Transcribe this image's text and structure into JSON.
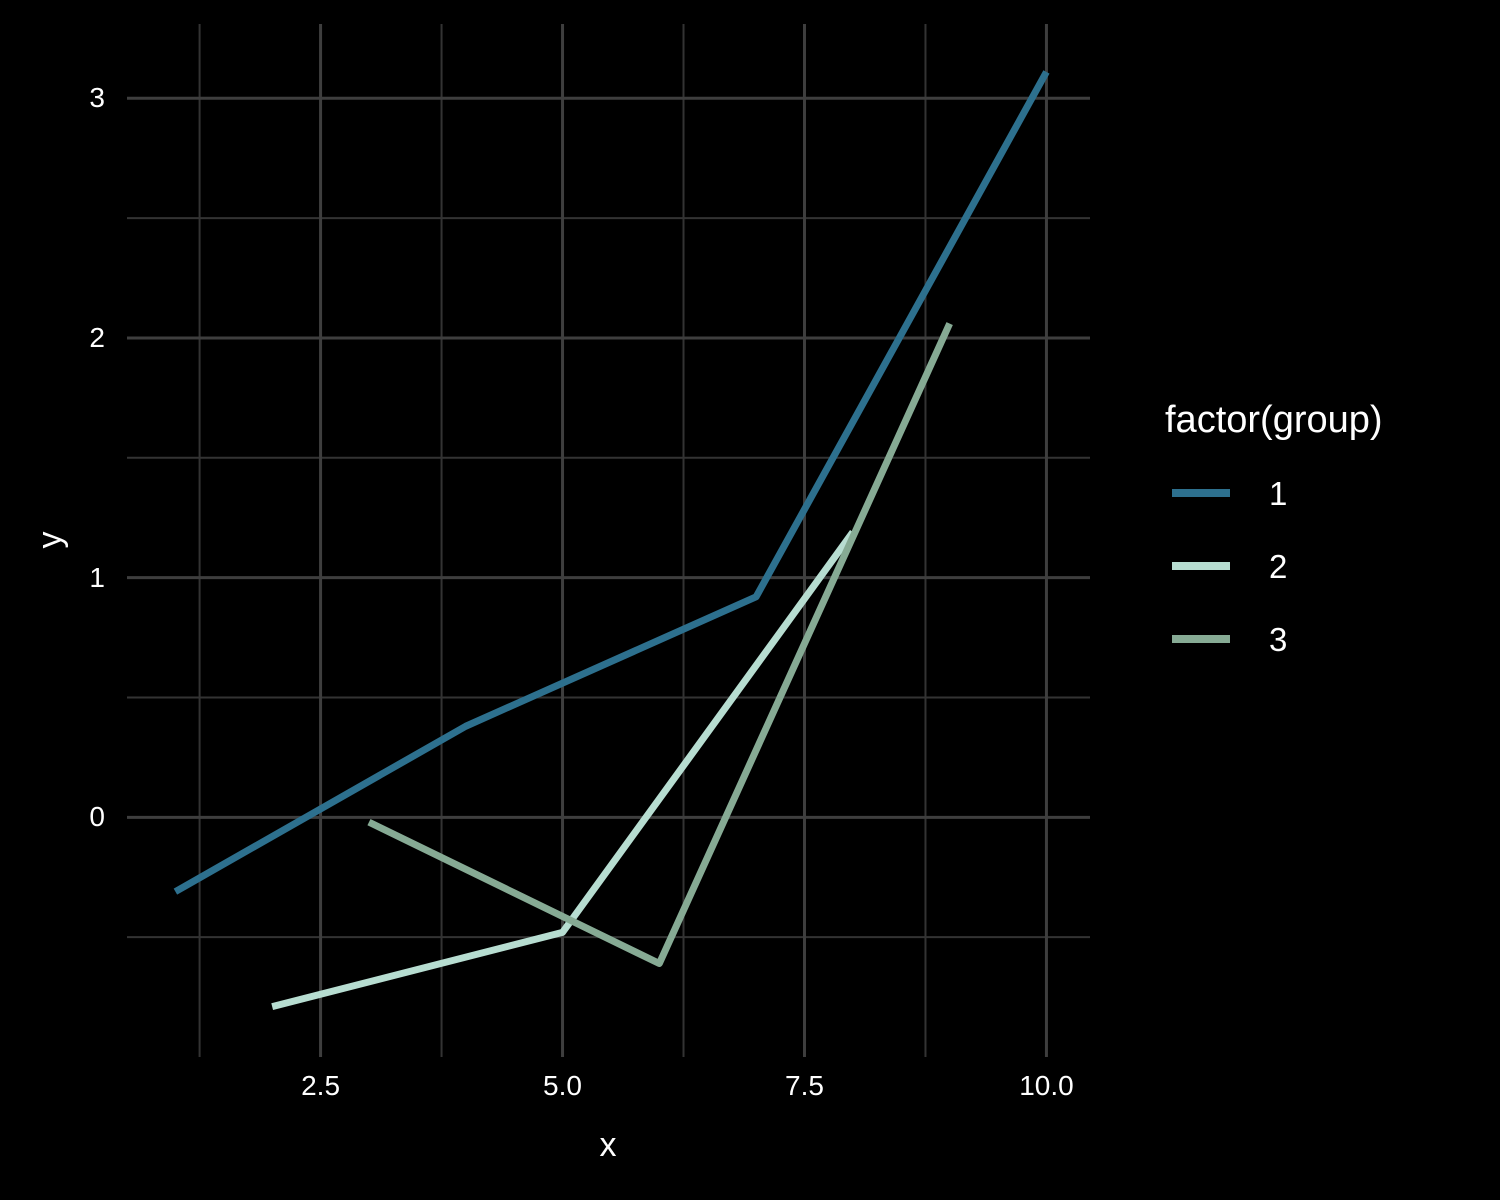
{
  "chart_data": {
    "type": "line",
    "title": "",
    "xlabel": "x",
    "ylabel": "y",
    "legend_title": "factor(group)",
    "legend_position": "right",
    "grid": true,
    "background_color": "#000000",
    "grid_major_color": "#3E3E3E",
    "grid_minor_color": "#333333",
    "text_color": "#ffffff",
    "x_range": [
      0.5,
      10.45
    ],
    "y_range": [
      -1.0,
      3.31
    ],
    "x_ticks": {
      "major": [
        {
          "value": 2.5,
          "label": "2.5"
        },
        {
          "value": 5.0,
          "label": "5.0"
        },
        {
          "value": 7.5,
          "label": "7.5"
        },
        {
          "value": 10.0,
          "label": "10.0"
        }
      ],
      "minor": [
        1.25,
        3.75,
        6.25,
        8.75
      ]
    },
    "y_ticks": {
      "major": [
        {
          "value": 0,
          "label": "0"
        },
        {
          "value": 1,
          "label": "1"
        },
        {
          "value": 2,
          "label": "2"
        },
        {
          "value": 3,
          "label": "3"
        }
      ],
      "minor": [
        -0.5,
        0.5,
        1.5,
        2.5
      ]
    },
    "series": [
      {
        "name": "1",
        "color": "#2D708E",
        "points": [
          [
            1,
            -0.31
          ],
          [
            4,
            0.38
          ],
          [
            7,
            0.92
          ],
          [
            10,
            3.11
          ]
        ]
      },
      {
        "name": "2",
        "color": "#B7DDD1",
        "points": [
          [
            2,
            -0.79
          ],
          [
            5,
            -0.48
          ],
          [
            8,
            1.19
          ]
        ]
      },
      {
        "name": "3",
        "color": "#86AA94",
        "points": [
          [
            3,
            -0.02
          ],
          [
            6,
            -0.61
          ],
          [
            9,
            2.06
          ]
        ]
      }
    ]
  }
}
